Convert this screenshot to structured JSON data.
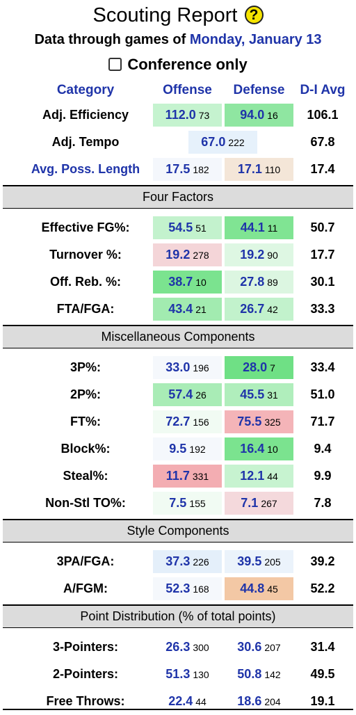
{
  "title": "Scouting Report",
  "help_symbol": "?",
  "subtitle": {
    "prefix": "Data through games of ",
    "date": "Monday, January 13"
  },
  "conference_toggle": {
    "label": "Conference only",
    "checked": false
  },
  "columns": {
    "category": "Category",
    "offense": "Offense",
    "defense": "Defense",
    "average": "D-I Avg"
  },
  "top_rows": [
    {
      "label": "Adj. Efficiency",
      "link": false,
      "off": {
        "val": "112.0",
        "rank": "73",
        "color": "#c5f3cf"
      },
      "def": {
        "val": "94.0",
        "rank": "16",
        "color": "#8fe6a1"
      },
      "avg": "106.1"
    },
    {
      "label": "Adj. Tempo",
      "link": false,
      "tempo": true,
      "tempo_cell": {
        "val": "67.0",
        "rank": "222",
        "color": "#e6f1fb"
      },
      "avg": "67.8"
    },
    {
      "label": "Avg. Poss. Length",
      "link": true,
      "off": {
        "val": "17.5",
        "rank": "182",
        "color": "#f4f7fc"
      },
      "def": {
        "val": "17.1",
        "rank": "110",
        "color": "#f4e6d8"
      },
      "avg": "17.4"
    }
  ],
  "sections": [
    {
      "title": "Four Factors",
      "rows": [
        {
          "label": "Effective FG%:",
          "off": {
            "val": "54.5",
            "rank": "51",
            "color": "#c3f2cd"
          },
          "def": {
            "val": "44.1",
            "rank": "11",
            "color": "#80e493"
          },
          "avg": "50.7"
        },
        {
          "label": "Turnover %:",
          "off": {
            "val": "19.2",
            "rank": "278",
            "color": "#f4d5d8"
          },
          "def": {
            "val": "19.2",
            "rank": "90",
            "color": "#def7e3"
          },
          "avg": "17.7"
        },
        {
          "label": "Off. Reb. %:",
          "off": {
            "val": "38.7",
            "rank": "10",
            "color": "#7be38f"
          },
          "def": {
            "val": "27.8",
            "rank": "89",
            "color": "#dcf6e1"
          },
          "avg": "30.1"
        },
        {
          "label": "FTA/FGA:",
          "off": {
            "val": "43.4",
            "rank": "21",
            "color": "#a2ebb0"
          },
          "def": {
            "val": "26.7",
            "rank": "42",
            "color": "#c2f2cc"
          },
          "avg": "33.3"
        }
      ]
    },
    {
      "title": "Miscellaneous Components",
      "rows": [
        {
          "label": "3P%:",
          "off": {
            "val": "33.0",
            "rank": "196",
            "color": "#f5f8fc"
          },
          "def": {
            "val": "28.0",
            "rank": "7",
            "color": "#6fe085"
          },
          "avg": "33.4"
        },
        {
          "label": "2P%:",
          "off": {
            "val": "57.4",
            "rank": "26",
            "color": "#a9ecb6"
          },
          "def": {
            "val": "45.5",
            "rank": "31",
            "color": "#b0eebc"
          },
          "avg": "51.0"
        },
        {
          "label": "FT%:",
          "off": {
            "val": "72.7",
            "rank": "156",
            "color": "#f1fbf3"
          },
          "def": {
            "val": "75.5",
            "rank": "325",
            "color": "#f4b4b8"
          },
          "avg": "71.7"
        },
        {
          "label": "Block%:",
          "off": {
            "val": "9.5",
            "rank": "192",
            "color": "#f5f8fc"
          },
          "def": {
            "val": "16.4",
            "rank": "10",
            "color": "#7be38f"
          },
          "avg": "9.4"
        },
        {
          "label": "Steal%:",
          "off": {
            "val": "11.7",
            "rank": "331",
            "color": "#f3adb2"
          },
          "def": {
            "val": "12.1",
            "rank": "44",
            "color": "#c7f3d0"
          },
          "avg": "9.9"
        },
        {
          "label": "Non-Stl TO%:",
          "off": {
            "val": "7.5",
            "rank": "155",
            "color": "#f1fbf3"
          },
          "def": {
            "val": "7.1",
            "rank": "267",
            "color": "#f4d9dc"
          },
          "avg": "7.8"
        }
      ]
    },
    {
      "title": "Style Components",
      "rows": [
        {
          "label": "3PA/FGA:",
          "off": {
            "val": "37.3",
            "rank": "226",
            "color": "#e4effa"
          },
          "def": {
            "val": "39.5",
            "rank": "205",
            "color": "#ebf3fb"
          },
          "avg": "39.2"
        },
        {
          "label": "A/FGM:",
          "off": {
            "val": "52.3",
            "rank": "168",
            "color": "#f5f8fc"
          },
          "def": {
            "val": "44.8",
            "rank": "45",
            "color": "#f3c8a5"
          },
          "avg": "52.2"
        }
      ]
    },
    {
      "title": "Point Distribution (% of total points)",
      "rows": [
        {
          "label": "3-Pointers:",
          "off": {
            "val": "26.3",
            "rank": "300",
            "color": "#ffffff"
          },
          "def": {
            "val": "30.6",
            "rank": "207",
            "color": "#ffffff"
          },
          "avg": "31.4"
        },
        {
          "label": "2-Pointers:",
          "off": {
            "val": "51.3",
            "rank": "130",
            "color": "#ffffff"
          },
          "def": {
            "val": "50.8",
            "rank": "142",
            "color": "#ffffff"
          },
          "avg": "49.5"
        },
        {
          "label": "Free Throws:",
          "off": {
            "val": "22.4",
            "rank": "44",
            "color": "#ffffff"
          },
          "def": {
            "val": "18.6",
            "rank": "204",
            "color": "#ffffff"
          },
          "avg": "19.1"
        }
      ]
    }
  ]
}
